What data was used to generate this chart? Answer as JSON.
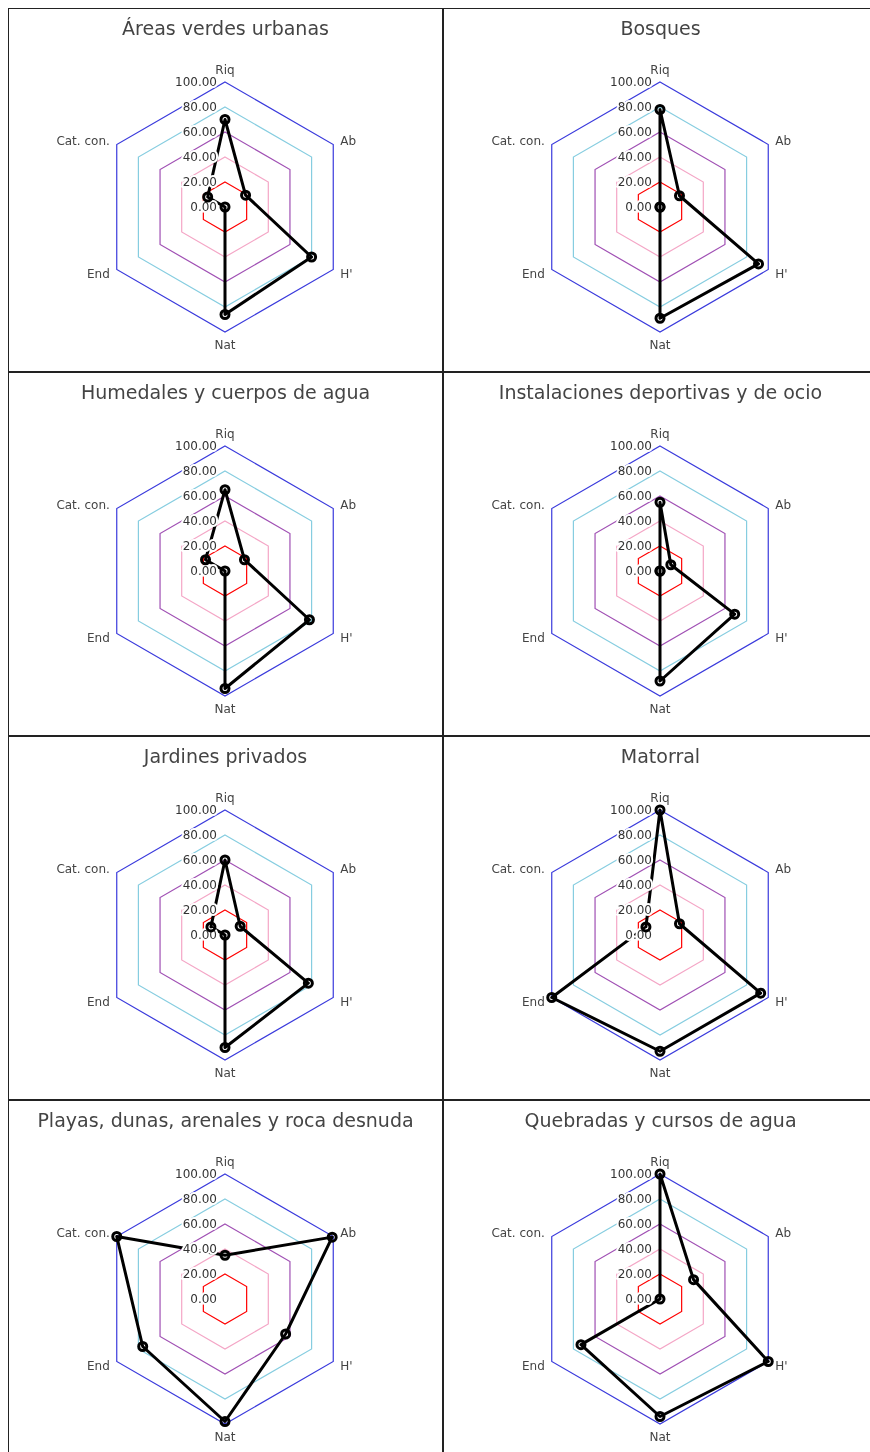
{
  "chart_data": [
    {
      "type": "radar",
      "title": "Áreas verdes urbanas",
      "categories": [
        "Riq",
        "Ab",
        "H'",
        "Nat",
        "End",
        "Cat. con."
      ],
      "series": [
        {
          "color": "#000000",
          "values": [
            70,
            19,
            80,
            86,
            0,
            16
          ]
        }
      ],
      "ylim": [
        0,
        100
      ],
      "yticks": [
        {
          "value": 0,
          "label": "0.00"
        },
        {
          "value": 20,
          "label": "20.00"
        },
        {
          "value": 40,
          "label": "40.00"
        },
        {
          "value": 60,
          "label": "60.00"
        },
        {
          "value": 80,
          "label": "80.00"
        },
        {
          "value": 100,
          "label": "100.00"
        }
      ],
      "grid": true,
      "marker": "circle"
    },
    {
      "type": "radar",
      "title": "Bosques",
      "categories": [
        "Riq",
        "Ab",
        "H'",
        "Nat",
        "End",
        "Cat. con."
      ],
      "series": [
        {
          "color": "#000000",
          "values": [
            78,
            18,
            91,
            89,
            0,
            0
          ]
        }
      ],
      "ylim": [
        0,
        100
      ],
      "yticks": [
        {
          "value": 0,
          "label": "0.00"
        },
        {
          "value": 20,
          "label": "20.00"
        },
        {
          "value": 40,
          "label": "40.00"
        },
        {
          "value": 60,
          "label": "60.00"
        },
        {
          "value": 80,
          "label": "80.00"
        },
        {
          "value": 100,
          "label": "100.00"
        }
      ],
      "grid": true,
      "marker": "circle"
    },
    {
      "type": "radar",
      "title": "Humedales y cuerpos de agua",
      "categories": [
        "Riq",
        "Ab",
        "H'",
        "Nat",
        "End",
        "Cat. con."
      ],
      "series": [
        {
          "color": "#000000",
          "values": [
            65,
            18,
            78,
            94,
            0,
            18
          ]
        }
      ],
      "ylim": [
        0,
        100
      ],
      "yticks": [
        {
          "value": 0,
          "label": "0.00"
        },
        {
          "value": 20,
          "label": "20.00"
        },
        {
          "value": 40,
          "label": "40.00"
        },
        {
          "value": 60,
          "label": "60.00"
        },
        {
          "value": 80,
          "label": "80.00"
        },
        {
          "value": 100,
          "label": "100.00"
        }
      ],
      "grid": true,
      "marker": "circle"
    },
    {
      "type": "radar",
      "title": "Instalaciones deportivas y de ocio",
      "categories": [
        "Riq",
        "Ab",
        "H'",
        "Nat",
        "End",
        "Cat. con."
      ],
      "series": [
        {
          "color": "#000000",
          "values": [
            55,
            10,
            69,
            88,
            0,
            0
          ]
        }
      ],
      "ylim": [
        0,
        100
      ],
      "yticks": [
        {
          "value": 0,
          "label": "0.00"
        },
        {
          "value": 20,
          "label": "20.00"
        },
        {
          "value": 40,
          "label": "40.00"
        },
        {
          "value": 60,
          "label": "60.00"
        },
        {
          "value": 80,
          "label": "80.00"
        },
        {
          "value": 100,
          "label": "100.00"
        }
      ],
      "grid": true,
      "marker": "circle"
    },
    {
      "type": "radar",
      "title": "Jardines privados",
      "categories": [
        "Riq",
        "Ab",
        "H'",
        "Nat",
        "End",
        "Cat. con."
      ],
      "series": [
        {
          "color": "#000000",
          "values": [
            60,
            14,
            77,
            90,
            0,
            13
          ]
        }
      ],
      "ylim": [
        0,
        100
      ],
      "yticks": [
        {
          "value": 0,
          "label": "0.00"
        },
        {
          "value": 20,
          "label": "20.00"
        },
        {
          "value": 40,
          "label": "40.00"
        },
        {
          "value": 60,
          "label": "60.00"
        },
        {
          "value": 80,
          "label": "80.00"
        },
        {
          "value": 100,
          "label": "100.00"
        }
      ],
      "grid": true,
      "marker": "circle"
    },
    {
      "type": "radar",
      "title": "Matorral",
      "categories": [
        "Riq",
        "Ab",
        "H'",
        "Nat",
        "End",
        "Cat. con."
      ],
      "series": [
        {
          "color": "#000000",
          "values": [
            100,
            18,
            93,
            93,
            100,
            13
          ]
        }
      ],
      "ylim": [
        0,
        100
      ],
      "yticks": [
        {
          "value": 0,
          "label": "0.00"
        },
        {
          "value": 20,
          "label": "20.00"
        },
        {
          "value": 40,
          "label": "40.00"
        },
        {
          "value": 60,
          "label": "60.00"
        },
        {
          "value": 80,
          "label": "80.00"
        },
        {
          "value": 100,
          "label": "100.00"
        }
      ],
      "grid": true,
      "marker": "circle"
    },
    {
      "type": "radar",
      "title": "Playas, dunas, arenales y roca desnuda",
      "categories": [
        "Riq",
        "Ab",
        "H'",
        "Nat",
        "End",
        "Cat. con."
      ],
      "series": [
        {
          "color": "#000000",
          "values": [
            35,
            99,
            56,
            98,
            76,
            100
          ]
        }
      ],
      "ylim": [
        0,
        100
      ],
      "yticks": [
        {
          "value": 0,
          "label": "0.00"
        },
        {
          "value": 20,
          "label": "20.00"
        },
        {
          "value": 40,
          "label": "40.00"
        },
        {
          "value": 60,
          "label": "60.00"
        },
        {
          "value": 80,
          "label": "80.00"
        },
        {
          "value": 100,
          "label": "100.00"
        }
      ],
      "grid": true,
      "marker": "circle"
    },
    {
      "type": "radar",
      "title": "Quebradas y cursos de agua",
      "categories": [
        "Riq",
        "Ab",
        "H'",
        "Nat",
        "End",
        "Cat. con."
      ],
      "series": [
        {
          "color": "#000000",
          "values": [
            100,
            31,
            100,
            94,
            73,
            0
          ]
        }
      ],
      "ylim": [
        0,
        100
      ],
      "yticks": [
        {
          "value": 0,
          "label": "0.00"
        },
        {
          "value": 20,
          "label": "20.00"
        },
        {
          "value": 40,
          "label": "40.00"
        },
        {
          "value": 60,
          "label": "60.00"
        },
        {
          "value": 80,
          "label": "80.00"
        },
        {
          "value": 100,
          "label": "100.00"
        }
      ],
      "grid": true,
      "marker": "circle"
    }
  ]
}
